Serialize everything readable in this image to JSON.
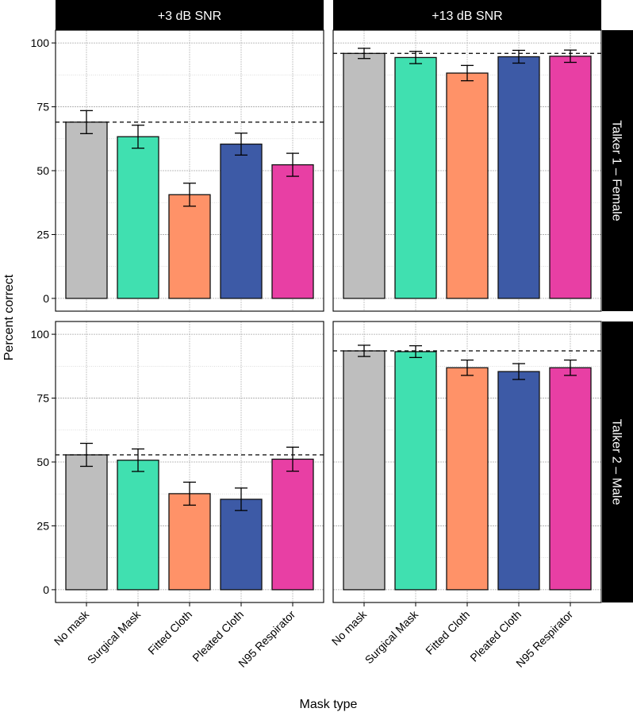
{
  "chart_data": {
    "type": "bar",
    "xlabel": "Mask type",
    "ylabel": "Percent correct",
    "ylim": [
      -5,
      105
    ],
    "yticks": [
      0,
      25,
      50,
      75,
      100
    ],
    "grid": true,
    "categories": [
      "No mask",
      "Surgical Mask",
      "Fitted Cloth",
      "Pleated Cloth",
      "N95 Respirator"
    ],
    "colors": [
      "#bebebe",
      "#40e0b0",
      "#ff9268",
      "#3d5aa6",
      "#e83fa4"
    ],
    "columns": [
      "+3 dB SNR",
      "+13 dB SNR"
    ],
    "rows": [
      "Talker 1 – Female",
      "Talker 2 – Male"
    ],
    "panels": [
      {
        "row": 0,
        "col": 0,
        "reference": 69,
        "values": [
          69,
          63.3,
          40.6,
          60.4,
          52.3
        ],
        "errors": [
          4.5,
          4.5,
          4.5,
          4.3,
          4.5
        ]
      },
      {
        "row": 0,
        "col": 1,
        "reference": 95.9,
        "values": [
          95.9,
          94.3,
          88.2,
          94.6,
          94.8
        ],
        "errors": [
          2.0,
          2.4,
          3.0,
          2.5,
          2.4
        ]
      },
      {
        "row": 1,
        "col": 0,
        "reference": 52.8,
        "values": [
          52.8,
          50.7,
          37.6,
          35.4,
          51.1
        ],
        "errors": [
          4.5,
          4.4,
          4.5,
          4.4,
          4.7
        ]
      },
      {
        "row": 1,
        "col": 1,
        "reference": 93.5,
        "values": [
          93.5,
          93.2,
          86.9,
          85.4,
          86.9
        ],
        "errors": [
          2.2,
          2.3,
          3.0,
          3.1,
          3.0
        ]
      }
    ]
  }
}
